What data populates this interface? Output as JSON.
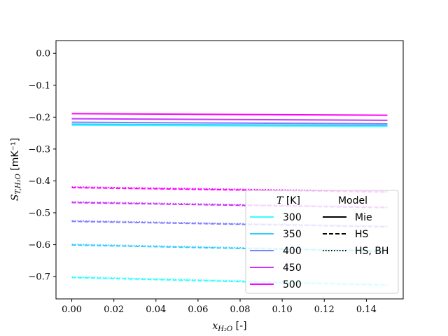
{
  "chart_data": {
    "type": "line",
    "xlabel_var": "x",
    "xlabel_sub": "H₂O",
    "xlabel_unit": " [-]",
    "ylabel_var": "S",
    "ylabel_sub": "T,H₂O",
    "ylabel_unit": " [mK⁻¹]",
    "xlim": [
      -0.0075,
      0.1575
    ],
    "ylim": [
      -0.77,
      0.04
    ],
    "xticks": [
      0.0,
      0.02,
      0.04,
      0.06,
      0.08,
      0.1,
      0.12,
      0.14
    ],
    "xtick_labels": [
      "0.00",
      "0.02",
      "0.04",
      "0.06",
      "0.08",
      "0.10",
      "0.12",
      "0.14"
    ],
    "yticks": [
      0.0,
      -0.1,
      -0.2,
      -0.3,
      -0.4,
      -0.5,
      -0.6,
      -0.7
    ],
    "ytick_labels": [
      "0.0",
      "−0.1",
      "−0.2",
      "−0.3",
      "−0.4",
      "−0.5",
      "−0.6",
      "−0.7"
    ],
    "grid": false,
    "x": [
      0.0,
      0.15
    ],
    "series": [
      {
        "name": "300",
        "model": "Mie",
        "color": "#33ffff",
        "values": [
          -0.225,
          -0.229
        ]
      },
      {
        "name": "350",
        "model": "Mie",
        "color": "#33ccff",
        "values": [
          -0.222,
          -0.226
        ]
      },
      {
        "name": "400",
        "model": "Mie",
        "color": "#8080ff",
        "values": [
          -0.216,
          -0.221
        ]
      },
      {
        "name": "450",
        "model": "Mie",
        "color": "#cc33ff",
        "values": [
          -0.205,
          -0.21
        ]
      },
      {
        "name": "500",
        "model": "Mie",
        "color": "#ff00ff",
        "values": [
          -0.189,
          -0.194
        ]
      },
      {
        "model": "HS",
        "color": "#33ffff",
        "values": [
          -0.703,
          -0.727
        ]
      },
      {
        "model": "HS",
        "color": "#33ccff",
        "values": [
          -0.601,
          -0.621
        ]
      },
      {
        "model": "HS",
        "color": "#8080ff",
        "values": [
          -0.527,
          -0.544
        ]
      },
      {
        "model": "HS",
        "color": "#cc33ff",
        "values": [
          -0.468,
          -0.484
        ]
      },
      {
        "model": "HS",
        "color": "#ff00ff",
        "values": [
          -0.421,
          -0.435
        ]
      },
      {
        "model": "HS, BH",
        "color": "#33ffff",
        "values": [
          -0.701,
          -0.725
        ]
      },
      {
        "model": "HS, BH",
        "color": "#33ccff",
        "values": [
          -0.599,
          -0.619
        ]
      },
      {
        "model": "HS, BH",
        "color": "#8080ff",
        "values": [
          -0.525,
          -0.542
        ]
      },
      {
        "model": "HS, BH",
        "color": "#cc33ff",
        "values": [
          -0.466,
          -0.482
        ]
      },
      {
        "model": "HS, BH",
        "color": "#ff00ff",
        "values": [
          -0.419,
          -0.433
        ]
      }
    ],
    "legend": {
      "placement": "lower-right",
      "temp_title_var": "T",
      "temp_title_unit": " [K]",
      "model_title": "Model",
      "temperatures": [
        {
          "label": "300",
          "color": "#33ffff"
        },
        {
          "label": "350",
          "color": "#33ccff"
        },
        {
          "label": "400",
          "color": "#8080ff"
        },
        {
          "label": "450",
          "color": "#cc33ff"
        },
        {
          "label": "500",
          "color": "#ff00ff"
        }
      ],
      "models": [
        {
          "label": "Mie",
          "style": "solid"
        },
        {
          "label": "HS",
          "style": "dashed"
        },
        {
          "label": "HS, BH",
          "style": "dotted"
        }
      ]
    }
  }
}
